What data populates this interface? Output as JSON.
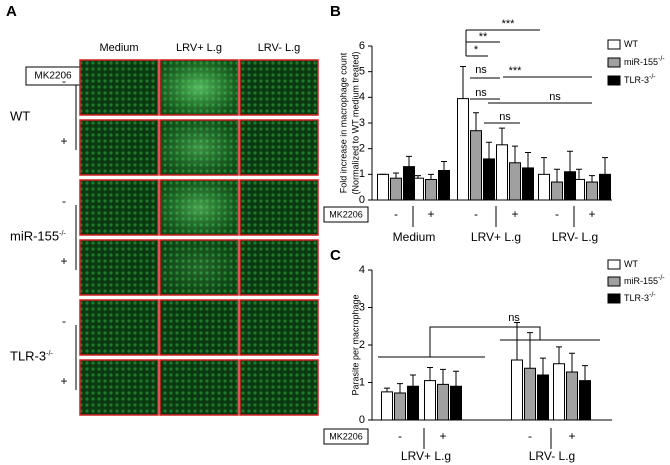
{
  "panel_labels": [
    "A",
    "B",
    "C"
  ],
  "panel_a": {
    "treatment_label": "MK2206",
    "columns": [
      "Medium",
      "LRV+ L.g",
      "LRV- L.g"
    ],
    "rows": [
      {
        "name": "WT"
      },
      {
        "name": "miR-155",
        "superscript": "-/-"
      },
      {
        "name": "TLR-3",
        "superscript": "-/-"
      }
    ],
    "marks": [
      "-",
      "+"
    ]
  },
  "chart_data": [
    {
      "type": "bar",
      "y_label": [
        "Fold increase in macrophage count",
        "(Normalized to WT medium treated)"
      ],
      "treatment_label": "MK2206",
      "categories": [
        "-",
        "+",
        "-",
        "+",
        "-",
        "+"
      ],
      "groups": [
        "Medium",
        "LRV+ L.g",
        "LRV- L.g"
      ],
      "series": [
        {
          "name": "WT",
          "color": "#ffffff",
          "values": [
            1.0,
            0.85,
            3.95,
            2.15,
            1.0,
            0.8
          ],
          "errors": [
            0.0,
            0.1,
            1.25,
            0.65,
            0.65,
            0.4
          ]
        },
        {
          "name": "miR-155",
          "name_superscript": "-/-",
          "color": "#a0a0a0",
          "values": [
            0.85,
            0.8,
            2.7,
            1.45,
            0.7,
            0.7
          ],
          "errors": [
            0.2,
            0.2,
            0.7,
            0.65,
            0.5,
            0.25
          ]
        },
        {
          "name": "TLR-3",
          "name_superscript": "-/-",
          "color": "#000000",
          "values": [
            1.3,
            1.15,
            1.6,
            1.25,
            1.1,
            1.0
          ],
          "errors": [
            0.4,
            0.35,
            0.65,
            0.6,
            0.8,
            0.65
          ]
        }
      ],
      "ylim": [
        0,
        6
      ],
      "yticks": [
        0,
        1,
        2,
        3,
        4,
        5,
        6
      ],
      "annotations": [
        "***",
        "**",
        "*",
        "***",
        "ns",
        "ns",
        "ns",
        "ns"
      ]
    },
    {
      "type": "bar",
      "y_label": [
        "Parasite per macrophage"
      ],
      "treatment_label": "MK2206",
      "categories": [
        "-",
        "+",
        "-",
        "+"
      ],
      "groups": [
        "LRV+ L.g",
        "LRV- L.g"
      ],
      "series": [
        {
          "name": "WT",
          "color": "#ffffff",
          "values": [
            0.75,
            1.05,
            1.6,
            1.5
          ],
          "errors": [
            0.1,
            0.35,
            1.0,
            0.45
          ]
        },
        {
          "name": "miR-155",
          "name_superscript": "-/-",
          "color": "#a0a0a0",
          "values": [
            0.72,
            0.95,
            1.38,
            1.28
          ],
          "errors": [
            0.25,
            0.4,
            0.95,
            0.5
          ]
        },
        {
          "name": "TLR-3",
          "name_superscript": "-/-",
          "color": "#000000",
          "values": [
            0.9,
            0.9,
            1.2,
            1.05
          ],
          "errors": [
            0.3,
            0.4,
            0.45,
            0.4
          ]
        }
      ],
      "ylim": [
        0,
        4
      ],
      "yticks": [
        0,
        1,
        2,
        3,
        4
      ],
      "annotations": [
        "ns"
      ]
    }
  ]
}
